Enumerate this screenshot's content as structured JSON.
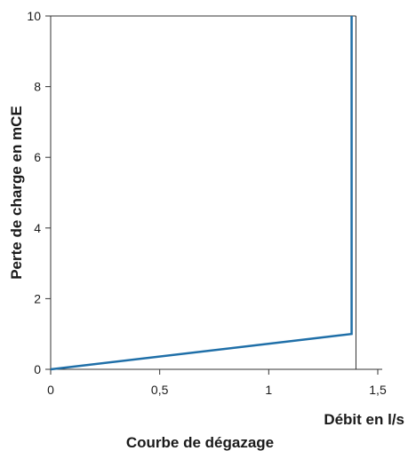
{
  "chart_data": {
    "type": "line",
    "title": "Courbe de dégazage",
    "xlabel": "Débit en l/s",
    "ylabel": "Perte de charge en mCE",
    "xlim": [
      0,
      1.5
    ],
    "ylim": [
      0,
      10
    ],
    "x_ticks": [
      0,
      0.5,
      1,
      1.5
    ],
    "x_tick_labels": [
      "0",
      "0,5",
      "1",
      "1,5"
    ],
    "y_ticks": [
      0,
      2,
      4,
      6,
      8,
      10
    ],
    "y_tick_labels": [
      "0",
      "2",
      "4",
      "6",
      "8",
      "10"
    ],
    "grid": false,
    "series": [
      {
        "color": "#1f6fa8",
        "x": [
          0,
          1.38,
          1.38
        ],
        "y": [
          0,
          1,
          10
        ]
      }
    ]
  }
}
